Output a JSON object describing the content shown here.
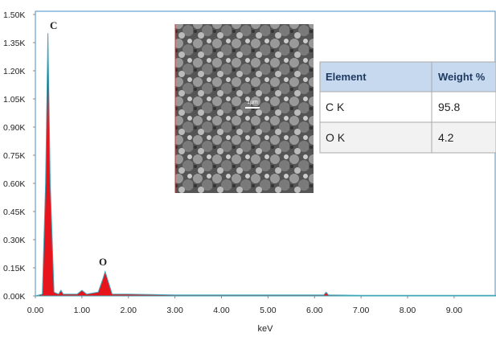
{
  "chart_data": {
    "type": "area",
    "xlabel": "keV",
    "color": "#e8141c",
    "line_color": "#3fa6b8",
    "x": [
      0,
      0.15,
      0.22,
      0.27,
      0.32,
      0.4,
      0.5,
      0.55,
      0.6,
      0.9,
      1.0,
      1.1,
      1.35,
      1.45,
      1.5,
      1.55,
      1.65,
      2.0,
      3.0,
      4.0,
      5.0,
      6.2,
      6.25,
      6.3,
      7.0,
      8.0,
      9.0,
      9.9
    ],
    "values": [
      0,
      0.01,
      0.6,
      1.4,
      0.6,
      0.02,
      0.01,
      0.03,
      0.01,
      0.01,
      0.03,
      0.01,
      0.02,
      0.09,
      0.13,
      0.09,
      0.01,
      0.01,
      0.005,
      0.005,
      0.005,
      0.005,
      0.02,
      0.005,
      0.003,
      0.003,
      0.003,
      0.003
    ],
    "xlim": [
      0,
      9.9
    ],
    "ylim": [
      0,
      1.5
    ],
    "xticks": [
      {
        "value": 0,
        "label": "0.00"
      },
      {
        "value": 1,
        "label": "1.00"
      },
      {
        "value": 2,
        "label": "2.00"
      },
      {
        "value": 3,
        "label": "3.00"
      },
      {
        "value": 4,
        "label": "4.00"
      },
      {
        "value": 5,
        "label": "5.00"
      },
      {
        "value": 6,
        "label": "6.00"
      },
      {
        "value": 7,
        "label": "7.00"
      },
      {
        "value": 8,
        "label": "8.00"
      },
      {
        "value": 9,
        "label": "9.00"
      }
    ],
    "yticks": [
      {
        "value": 0,
        "label": "0.00K"
      },
      {
        "value": 0.15,
        "label": "0.15K"
      },
      {
        "value": 0.3,
        "label": "0.30K"
      },
      {
        "value": 0.45,
        "label": "0.45K"
      },
      {
        "value": 0.6,
        "label": "0.60K"
      },
      {
        "value": 0.75,
        "label": "0.75K"
      },
      {
        "value": 0.9,
        "label": "0.90K"
      },
      {
        "value": 1.05,
        "label": "1.05K"
      },
      {
        "value": 1.2,
        "label": "1.20K"
      },
      {
        "value": 1.35,
        "label": "1.35K"
      },
      {
        "value": 1.5,
        "label": "1.50K"
      }
    ],
    "annotations": [
      "C",
      "O"
    ],
    "inset_scale": "1µm",
    "table": {
      "header": [
        "Element",
        "Weight %"
      ],
      "rows": [
        [
          "C K",
          "95.8"
        ],
        [
          "O K",
          "4.2"
        ]
      ]
    }
  }
}
